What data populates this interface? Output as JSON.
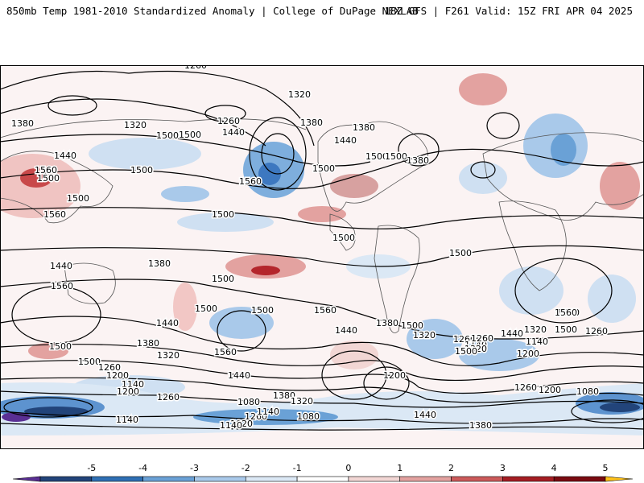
{
  "header": {
    "left": "850mb Temp 1981-2010 Standardized Anomaly | College of DuPage NEXLAB",
    "right": "18Z GFS | F261 Valid: 15Z FRI APR 04 2025"
  },
  "colorbar": {
    "ticks": [
      "-5",
      "-4",
      "-3",
      "-2",
      "-1",
      "0",
      "1",
      "2",
      "3",
      "4",
      "5"
    ],
    "colors": [
      "#5a2f94",
      "#22447a",
      "#2f6fb4",
      "#6aa1d6",
      "#a9c9ea",
      "#dbe8f5",
      "#ffffff",
      "#f2d6d4",
      "#e3a2a0",
      "#cc5a5a",
      "#a51d23",
      "#7a0a10",
      "#ffc21a"
    ]
  },
  "map": {
    "contour_labels": [
      "1320",
      "1260",
      "1380",
      "1320",
      "1500",
      "1440",
      "1320",
      "1260",
      "1500",
      "1560",
      "1440",
      "1500",
      "1380",
      "1560",
      "1500",
      "1500",
      "1440",
      "1380",
      "1500",
      "1500",
      "1380",
      "1500",
      "1560",
      "1440",
      "1380",
      "1500",
      "1500",
      "1500",
      "1500",
      "1560",
      "1500",
      "1500",
      "1560",
      "1560",
      "1440",
      "1380",
      "1320",
      "1500",
      "1500",
      "1260",
      "1200",
      "1140",
      "1200",
      "1260",
      "1140",
      "1440",
      "1380",
      "1320",
      "1260",
      "1500",
      "1560",
      "1440",
      "1380",
      "1320",
      "1260",
      "1140",
      "1080",
      "1020",
      "1080",
      "1140",
      "1200",
      "1140",
      "1260",
      "1320",
      "1500",
      "1440",
      "1380",
      "1260",
      "1140",
      "1200",
      "1080",
      "1260",
      "1320",
      "1140",
      "1200",
      "1560",
      "1500",
      "1440"
    ]
  }
}
